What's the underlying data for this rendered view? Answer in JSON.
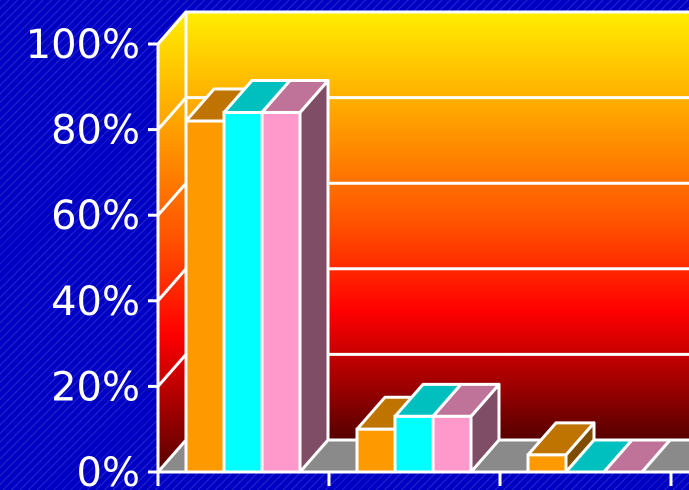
{
  "chart_data": {
    "type": "bar",
    "title": "",
    "xlabel": "",
    "ylabel": "",
    "ylim": [
      0,
      100
    ],
    "yticks": [
      "0%",
      "20%",
      "40%",
      "60%",
      "80%",
      "100%"
    ],
    "ytick_values": [
      0,
      20,
      40,
      60,
      80,
      100
    ],
    "categories": [
      "",
      "",
      ""
    ],
    "series": [
      {
        "values": [
          82,
          10,
          4
        ],
        "color": "#ff9900"
      },
      {
        "values": [
          84,
          13,
          0
        ],
        "color": "#00ffff"
      },
      {
        "values": [
          84,
          13,
          0
        ],
        "color": "#ff99cc"
      }
    ],
    "grid": true,
    "legend": "none",
    "three_d": true,
    "colors": {
      "background": "#0000c4",
      "wall_top": "#ffee00",
      "wall_bottom": "#550000",
      "floor": "#8a8a8a",
      "gridline": "#ffffff"
    }
  }
}
